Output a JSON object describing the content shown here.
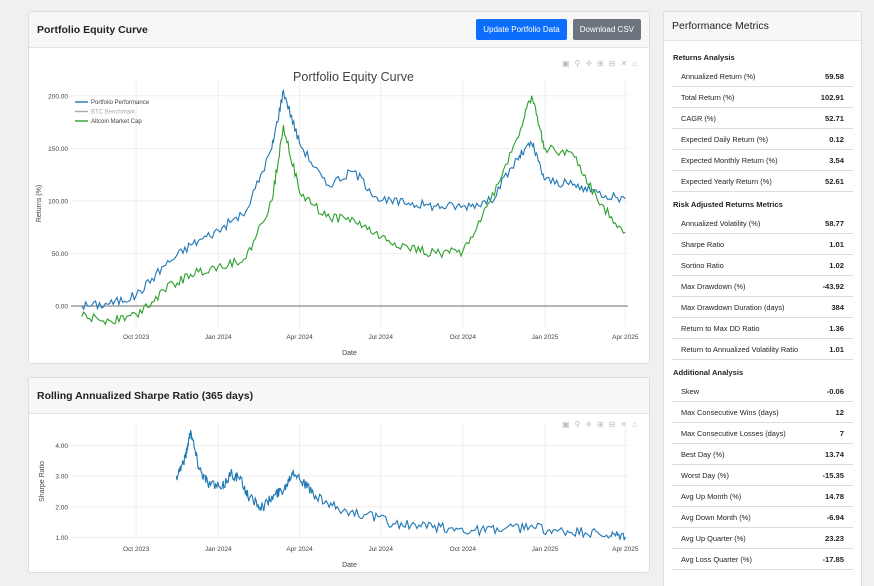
{
  "equity_card": {
    "title": "Portfolio Equity Curve",
    "update_label": "Update Portfolio Data",
    "download_label": "Download CSV"
  },
  "sharpe_card": {
    "title": "Rolling Annualized Sharpe Ratio (365 days)"
  },
  "modebar_icons": [
    "camera-icon",
    "zoom-icon",
    "pan-icon",
    "zoom-in-icon",
    "zoom-out-icon",
    "autoscale-icon",
    "home-icon"
  ],
  "colors": {
    "portfolio": "#1f77b4",
    "benchmark": "#aaaaaa",
    "altcoin": "#2ca02c",
    "primary_button": "#0d6efd",
    "secondary_button": "#6c757d"
  },
  "chart_data": [
    {
      "type": "line",
      "title": "Portfolio Equity Curve",
      "xlabel": "Date",
      "ylabel": "Returns (%)",
      "x_tick_labels": [
        "Oct 2023",
        "Jan 2024",
        "Apr 2024",
        "Jul 2024",
        "Oct 2024",
        "Jan 2025",
        "Apr 2025"
      ],
      "y_tick_labels": [
        "0.00",
        "50.00",
        "100.00",
        "150.00",
        "200.00"
      ],
      "ylim": [
        -20,
        215
      ],
      "legend_position": "top-left",
      "x_dates": [
        "2023-08-01",
        "2023-09-01",
        "2023-10-01",
        "2023-11-01",
        "2023-12-01",
        "2024-01-01",
        "2024-02-01",
        "2024-03-01",
        "2024-03-14",
        "2024-04-01",
        "2024-05-01",
        "2024-06-01",
        "2024-07-01",
        "2024-08-01",
        "2024-09-01",
        "2024-10-01",
        "2024-11-01",
        "2024-12-01",
        "2024-12-17",
        "2025-01-01",
        "2025-02-01",
        "2025-03-01",
        "2025-04-01"
      ],
      "series": [
        {
          "name": "Portfolio Performance",
          "color": "#1f77b4",
          "values": [
            0,
            2,
            10,
            38,
            58,
            72,
            90,
            150,
            205,
            155,
            115,
            128,
            100,
            98,
            95,
            95,
            100,
            140,
            155,
            120,
            115,
            108,
            102
          ]
        },
        {
          "name": "BTC Benchmark",
          "color": "#aaaaaa",
          "values": []
        },
        {
          "name": "Altcoin Market Cap",
          "color": "#2ca02c",
          "values": [
            -10,
            -14,
            -8,
            15,
            30,
            38,
            45,
            100,
            172,
            108,
            85,
            82,
            65,
            55,
            50,
            52,
            100,
            160,
            200,
            150,
            145,
            100,
            70
          ]
        }
      ]
    },
    {
      "type": "line",
      "title": "",
      "xlabel": "Date",
      "ylabel": "Sharpe Ratio",
      "x_tick_labels": [
        "Oct 2023",
        "Jan 2024",
        "Apr 2024",
        "Jul 2024",
        "Oct 2024",
        "Jan 2025",
        "Apr 2025"
      ],
      "y_tick_labels": [
        "1.00",
        "2.00",
        "3.00",
        "4.00"
      ],
      "ylim": [
        0.95,
        4.7
      ],
      "x_dates": [
        "2023-11-15",
        "2023-11-25",
        "2023-12-01",
        "2023-12-10",
        "2023-12-20",
        "2024-01-05",
        "2024-01-15",
        "2024-01-25",
        "2024-02-05",
        "2024-02-20",
        "2024-03-05",
        "2024-03-15",
        "2024-03-25",
        "2024-04-05",
        "2024-04-20",
        "2024-05-15",
        "2024-06-15",
        "2024-07-15",
        "2024-08-15",
        "2024-09-15",
        "2024-10-15",
        "2024-11-15",
        "2024-12-15",
        "2025-01-15",
        "2025-02-15",
        "2025-03-15",
        "2025-04-01"
      ],
      "series": [
        {
          "name": "Rolling Sharpe",
          "color": "#1f77b4",
          "values": [
            3.0,
            3.6,
            4.5,
            3.3,
            2.8,
            2.6,
            3.1,
            2.9,
            2.3,
            2.0,
            2.4,
            2.6,
            3.2,
            2.8,
            2.3,
            1.9,
            1.75,
            1.45,
            1.35,
            1.3,
            1.25,
            1.25,
            1.35,
            1.2,
            1.15,
            1.05,
            1.02
          ]
        }
      ]
    }
  ],
  "metrics": {
    "title": "Performance Metrics",
    "sections": [
      {
        "title": "Returns Analysis",
        "rows": [
          {
            "label": "Annualized Return (%)",
            "value": "59.58"
          },
          {
            "label": "Total Return (%)",
            "value": "102.91"
          },
          {
            "label": "CAGR (%)",
            "value": "52.71"
          },
          {
            "label": "Expected Daily Return (%)",
            "value": "0.12"
          },
          {
            "label": "Expected Monthly Return (%)",
            "value": "3.54"
          },
          {
            "label": "Expected Yearly Return (%)",
            "value": "52.61"
          }
        ]
      },
      {
        "title": "Risk Adjusted Returns Metrics",
        "rows": [
          {
            "label": "Annualized Volatility (%)",
            "value": "58.77"
          },
          {
            "label": "Sharpe Ratio",
            "value": "1.01"
          },
          {
            "label": "Sortino Ratio",
            "value": "1.02"
          },
          {
            "label": "Max Drawdown (%)",
            "value": "-43.92"
          },
          {
            "label": "Max Drawdown Duration (days)",
            "value": "384"
          },
          {
            "label": "Return to Max DD Ratio",
            "value": "1.36"
          },
          {
            "label": "Return to Annualized Volatility Ratio",
            "value": "1.01"
          }
        ]
      },
      {
        "title": "Additional Analysis",
        "rows": [
          {
            "label": "Skew",
            "value": "-0.06"
          },
          {
            "label": "Max Consecutive Wins (days)",
            "value": "12"
          },
          {
            "label": "Max Consecutive Losses (days)",
            "value": "7"
          },
          {
            "label": "Best Day (%)",
            "value": "13.74"
          },
          {
            "label": "Worst Day (%)",
            "value": "-15.35"
          },
          {
            "label": "Avg Up Month (%)",
            "value": "14.78"
          },
          {
            "label": "Avg Down Month (%)",
            "value": "-6.94"
          },
          {
            "label": "Avg Up Quarter (%)",
            "value": "23.23"
          },
          {
            "label": "Avg Loss Quarter (%)",
            "value": "-17.85"
          }
        ]
      }
    ]
  }
}
